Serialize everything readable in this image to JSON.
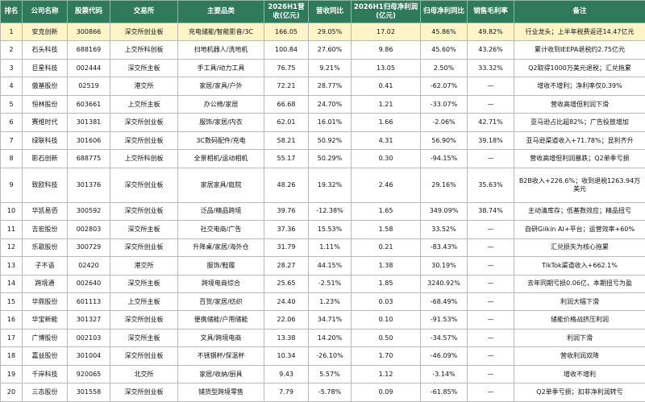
{
  "headers": [
    "排名",
    "公司名称",
    "股票代码",
    "交易所",
    "主要品类",
    "2026H1营收(亿元)",
    "营收同比",
    "2026H1归母净利润(亿元)",
    "归母净利同比",
    "销售毛利率",
    "备注"
  ],
  "rows": [
    {
      "rank": "1",
      "name": "安克创新",
      "code": "300866",
      "exchange": "深交所创业板",
      "category": "充电储能/智能影音/3C",
      "revenue": "166.05",
      "rev_yoy": "29.05%",
      "profit": "17.02",
      "profit_yoy": "45.86%",
      "margin": "49.82%",
      "note": "行业龙头；上半年税费返还14.47亿元"
    },
    {
      "rank": "2",
      "name": "石头科技",
      "code": "688169",
      "exchange": "上交所科创板",
      "category": "扫地机器人/洗地机",
      "revenue": "100.84",
      "rev_yoy": "27.60%",
      "profit": "9.86",
      "profit_yoy": "45.60%",
      "margin": "43.26%",
      "note": "累计收到IEEPA退税约2.75亿元"
    },
    {
      "rank": "3",
      "name": "巨星科技",
      "code": "002444",
      "exchange": "深交所主板",
      "category": "手工具/动力工具",
      "revenue": "76.75",
      "rev_yoy": "9.21%",
      "profit": "13.05",
      "profit_yoy": "2.50%",
      "margin": "33.32%",
      "note": "Q2取得1000万美元退税；汇兑拖累"
    },
    {
      "rank": "4",
      "name": "傲基股份",
      "code": "02519",
      "exchange": "港交所",
      "category": "家居/家具/户外",
      "revenue": "72.21",
      "rev_yoy": "28.77%",
      "profit": "0.41",
      "profit_yoy": "-62.07%",
      "margin": "—",
      "note": "增收不增利；净利率仅0.39%"
    },
    {
      "rank": "5",
      "name": "恒林股份",
      "code": "603661",
      "exchange": "上交所主板",
      "category": "办公椅/家居",
      "revenue": "66.68",
      "rev_yoy": "24.70%",
      "profit": "1.21",
      "profit_yoy": "-33.07%",
      "margin": "—",
      "note": "营收高增但利润下滑"
    },
    {
      "rank": "6",
      "name": "赛维时代",
      "code": "301381",
      "exchange": "深交所创业板",
      "category": "服饰/家居/内衣",
      "revenue": "62.01",
      "rev_yoy": "16.01%",
      "profit": "1.66",
      "profit_yoy": "-2.06%",
      "margin": "42.71%",
      "note": "亚马逊占比超82%；广告投放增加"
    },
    {
      "rank": "7",
      "name": "绿联科技",
      "code": "301606",
      "exchange": "深交所创业板",
      "category": "3C数码配件/充电",
      "revenue": "58.21",
      "rev_yoy": "50.92%",
      "profit": "4.31",
      "profit_yoy": "56.90%",
      "margin": "39.18%",
      "note": "亚马逊渠道收入+71.78%；显利齐升"
    },
    {
      "rank": "8",
      "name": "影石创新",
      "code": "688775",
      "exchange": "上交所科创板",
      "category": "全景相机/运动相机",
      "revenue": "55.17",
      "rev_yoy": "50.29%",
      "profit": "0.30",
      "profit_yoy": "-94.15%",
      "margin": "—",
      "note": "营收高增但利润暴跌；Q2单季亏损"
    },
    {
      "rank": "9",
      "name": "致欧科技",
      "code": "301376",
      "exchange": "深交所创业板",
      "category": "家居家具/庭院",
      "revenue": "48.26",
      "rev_yoy": "19.32%",
      "profit": "2.46",
      "profit_yoy": "29.16%",
      "margin": "35.63%",
      "note": "B2B收入+226.6%；收到退税1263.94万美元"
    },
    {
      "rank": "10",
      "name": "华凯易佰",
      "code": "300592",
      "exchange": "深交所创业板",
      "category": "泛品/精品跨境",
      "revenue": "39.76",
      "rev_yoy": "-12.38%",
      "profit": "1.65",
      "profit_yoy": "349.09%",
      "margin": "38.74%",
      "note": "主动清库存；低基数效应；精品扭亏"
    },
    {
      "rank": "11",
      "name": "吉宏股份",
      "code": "002803",
      "exchange": "深交所主板",
      "category": "社交电商/广告",
      "revenue": "37.36",
      "rev_yoy": "15.53%",
      "profit": "1.58",
      "profit_yoy": "33.52%",
      "margin": "—",
      "note": "自研Giikin AI+平台；运营效率+60%"
    },
    {
      "rank": "12",
      "name": "乐歌股份",
      "code": "300729",
      "exchange": "深交所创业板",
      "category": "升降桌/家居/海外仓",
      "revenue": "31.79",
      "rev_yoy": "1.11%",
      "profit": "0.21",
      "profit_yoy": "-83.43%",
      "margin": "—",
      "note": "汇兑损失为核心拖累"
    },
    {
      "rank": "13",
      "name": "子不语",
      "code": "02420",
      "exchange": "港交所",
      "category": "服饰/鞋履",
      "revenue": "28.27",
      "rev_yoy": "44.15%",
      "profit": "1.38",
      "profit_yoy": "30.19%",
      "margin": "—",
      "note": "TikTok渠道收入+662.1%"
    },
    {
      "rank": "14",
      "name": "跨境通",
      "code": "002640",
      "exchange": "深交所主板",
      "category": "跨境电商综合",
      "revenue": "25.65",
      "rev_yoy": "-2.51%",
      "profit": "1.85",
      "profit_yoy": "3240.92%",
      "margin": "—",
      "note": "去年同期亏损0.06亿，本期扭亏为盈"
    },
    {
      "rank": "15",
      "name": "华鼎股份",
      "code": "601113",
      "exchange": "上交所主板",
      "category": "百货/家居/纺织",
      "revenue": "24.40",
      "rev_yoy": "1.23%",
      "profit": "0.03",
      "profit_yoy": "-68.49%",
      "margin": "—",
      "note": "利润大幅下滑"
    },
    {
      "rank": "16",
      "name": "华宝新能",
      "code": "301327",
      "exchange": "深交所创业板",
      "category": "便携储能/户用储能",
      "revenue": "22.06",
      "rev_yoy": "34.71%",
      "profit": "0.10",
      "profit_yoy": "-91.53%",
      "margin": "—",
      "note": "储能价格战挤压利润"
    },
    {
      "rank": "17",
      "name": "广博股份",
      "code": "002103",
      "exchange": "深交所主板",
      "category": "文具/跨境电商",
      "revenue": "13.38",
      "rev_yoy": "14.20%",
      "profit": "0.50",
      "profit_yoy": "-34.57%",
      "margin": "—",
      "note": "利润下滑"
    },
    {
      "rank": "18",
      "name": "嘉益股份",
      "code": "301004",
      "exchange": "深交所创业板",
      "category": "不锈钢杯/保温杯",
      "revenue": "10.34",
      "rev_yoy": "-26.10%",
      "profit": "1.70",
      "profit_yoy": "-46.09%",
      "margin": "—",
      "note": "营收利润双降"
    },
    {
      "rank": "19",
      "name": "千岸科技",
      "code": "920065",
      "exchange": "北交所",
      "category": "家居/收纳/厨具",
      "revenue": "9.43",
      "rev_yoy": "5.57%",
      "profit": "1.12",
      "profit_yoy": "-3.14%",
      "margin": "—",
      "note": "增收不增利"
    },
    {
      "rank": "20",
      "name": "三态股份",
      "code": "301558",
      "exchange": "深交所创业板",
      "category": "铺货型跨境零售",
      "revenue": "7.79",
      "rev_yoy": "-5.78%",
      "profit": "0.09",
      "profit_yoy": "-61.85%",
      "margin": "—",
      "note": "Q2单季亏损；扣非净利润转亏"
    }
  ]
}
